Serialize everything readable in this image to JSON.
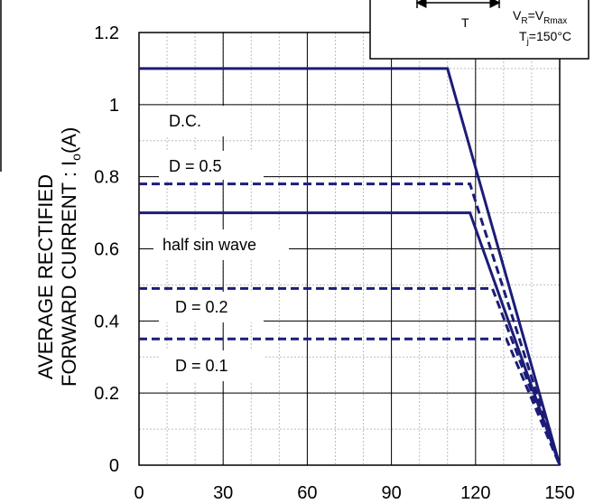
{
  "chart_data": {
    "type": "line",
    "title": "",
    "xlabel": "",
    "ylabel_line1": "AVERAGE RECTIFIED",
    "ylabel_line2_prefix": "FORWARD CURRENT : I",
    "ylabel_line2_sub": "o",
    "ylabel_line2_suffix": "(A)",
    "xlim": [
      0,
      150
    ],
    "ylim": [
      0,
      1.2
    ],
    "x_ticks": [
      0,
      30,
      60,
      90,
      120,
      150
    ],
    "x_tick_labels": [
      "0",
      "30",
      "60",
      "90",
      "120",
      "150"
    ],
    "y_ticks": [
      0,
      0.2,
      0.4,
      0.6,
      0.8,
      1.0,
      1.2
    ],
    "y_tick_labels": [
      "0",
      "0.2",
      "0.4",
      "0.6",
      "0.8",
      "1",
      "1.2"
    ],
    "grid": true,
    "series": [
      {
        "name": "D.C.",
        "style": "solid",
        "x": [
          0,
          110,
          150
        ],
        "y": [
          1.1,
          1.1,
          0
        ]
      },
      {
        "name": "D = 0.5",
        "style": "dashed",
        "x": [
          0,
          118,
          150
        ],
        "y": [
          0.78,
          0.78,
          0
        ]
      },
      {
        "name": "half sin wave",
        "style": "solid",
        "x": [
          0,
          118,
          150
        ],
        "y": [
          0.7,
          0.7,
          0
        ]
      },
      {
        "name": "D = 0.2",
        "style": "dashed",
        "x": [
          0,
          126,
          150
        ],
        "y": [
          0.49,
          0.49,
          0
        ]
      },
      {
        "name": "D = 0.1",
        "style": "dashed",
        "x": [
          0,
          131,
          150
        ],
        "y": [
          0.35,
          0.35,
          0
        ]
      }
    ],
    "legend_box": {
      "T_label": "T",
      "vr_prefix": "V",
      "vr_sub1": "R",
      "vr_mid": "=V",
      "vr_sub2": "Rmax",
      "tj_prefix": "T",
      "tj_sub": "j",
      "tj_suffix": "=150°C"
    }
  },
  "colors": {
    "line": "#1c1c78",
    "grid": "#bdbdbd",
    "axis": "#000000"
  }
}
